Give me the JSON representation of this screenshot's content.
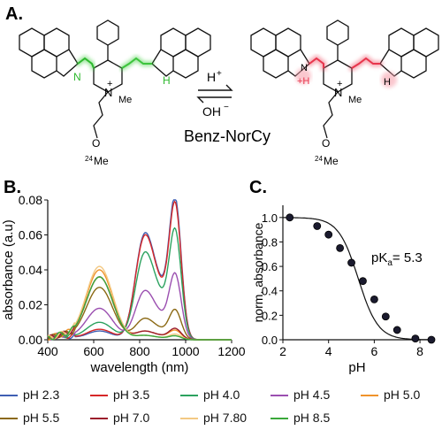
{
  "panels": {
    "a_label": "A.",
    "b_label": "B.",
    "c_label": "C."
  },
  "scheme": {
    "acid_label": "H",
    "acid_charge": "+",
    "base_label": "OH",
    "base_charge": "−",
    "compound_name": "Benz-NorCy",
    "left": {
      "n_label": "N",
      "nh_label": "H",
      "ring_n": "N",
      "ring_charge": "+",
      "methyl": "Me",
      "peg_o": "O",
      "peg_n": "24",
      "peg_me": "Me"
    },
    "right": {
      "n_label": "N",
      "n_h": "+H",
      "nh_label": "H",
      "ring_n": "N",
      "ring_charge": "+",
      "methyl": "Me",
      "peg_o": "O",
      "peg_n": "24",
      "peg_me": "Me"
    }
  },
  "chart_data": [
    {
      "type": "line",
      "panel": "B",
      "xlabel": "wavelength (nm)",
      "ylabel": "absorbance (a.u)",
      "xlim": [
        400,
        1200
      ],
      "ylim": [
        0,
        0.08
      ],
      "xticks": [
        400,
        600,
        800,
        1000,
        1200
      ],
      "yticks": [
        0.0,
        0.02,
        0.04,
        0.06,
        0.08
      ],
      "ytick_labels": [
        "0.00",
        "0.02",
        "0.04",
        "0.06",
        "0.08"
      ],
      "grid": false,
      "series": [
        {
          "name": "pH 2.3",
          "color": "#3f5fb3",
          "peaks": {
            "vis": 0.005,
            "nir1": 0.05,
            "nir2": 0.075
          }
        },
        {
          "name": "pH 3.5",
          "color": "#d62728",
          "peaks": {
            "vis": 0.006,
            "nir1": 0.049,
            "nir2": 0.072
          }
        },
        {
          "name": "pH 4.0",
          "color": "#2ca25f",
          "peaks": {
            "vis": 0.01,
            "nir1": 0.041,
            "nir2": 0.058
          }
        },
        {
          "name": "pH 4.5",
          "color": "#9b4fb0",
          "peaks": {
            "vis": 0.018,
            "nir1": 0.023,
            "nir2": 0.035
          }
        },
        {
          "name": "pH 5.0",
          "color": "#f0932b",
          "peaks": {
            "vis": 0.04,
            "nir1": 0.004,
            "nir2": 0.005
          }
        },
        {
          "name": "pH 5.5",
          "color": "#8b6914",
          "peaks": {
            "vis": 0.03,
            "nir1": 0.01,
            "nir2": 0.016
          }
        },
        {
          "name": "pH 7.0",
          "color": "#9b1c2c",
          "peaks": {
            "vis": 0.036,
            "nir1": 0.004,
            "nir2": 0.006
          }
        },
        {
          "name": "pH 7.80",
          "color": "#f3c983",
          "peaks": {
            "vis": 0.042,
            "nir1": 0.002,
            "nir2": 0.003
          }
        },
        {
          "name": "pH 8.5",
          "color": "#3aa83a",
          "peaks": {
            "vis": 0.036,
            "nir1": 0.002,
            "nir2": 0.002
          }
        }
      ]
    },
    {
      "type": "scatter",
      "panel": "C",
      "xlabel": "pH",
      "ylabel": "norm. absorbance",
      "xlim": [
        2,
        8.5
      ],
      "ylim": [
        0,
        1.1
      ],
      "xticks": [
        2,
        4,
        6,
        8
      ],
      "yticks": [
        0.0,
        0.2,
        0.4,
        0.6,
        0.8,
        1.0
      ],
      "ytick_labels": [
        "0.0",
        "0.2",
        "0.4",
        "0.6",
        "0.8",
        "1.0"
      ],
      "annotation_base": "pK",
      "annotation_sub": "a",
      "annotation_value": "= 5.3",
      "pKa": 5.3,
      "x": [
        2.3,
        3.5,
        4.0,
        4.5,
        5.0,
        5.5,
        6.0,
        6.5,
        7.0,
        7.8,
        8.5
      ],
      "y": [
        1.0,
        0.93,
        0.86,
        0.75,
        0.63,
        0.48,
        0.33,
        0.19,
        0.08,
        0.01,
        0.0
      ]
    }
  ],
  "legend": [
    [
      "pH 2.3",
      "pH 3.5",
      "pH 4.0",
      "pH 4.5",
      "pH 5.0"
    ],
    [
      "pH 5.5",
      "pH 7.0",
      "pH 7.80",
      "pH 8.5"
    ]
  ]
}
